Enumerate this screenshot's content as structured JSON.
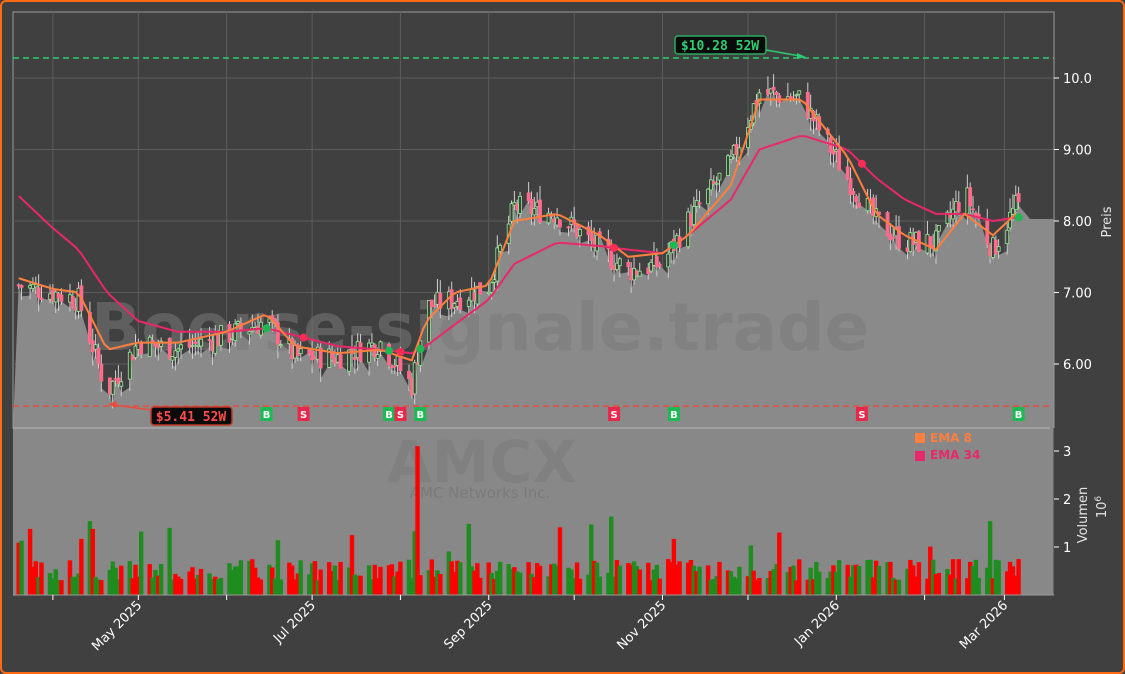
{
  "chart_data": {
    "type": "candlestick",
    "ticker": "AMCX",
    "company": "AMC Networks Inc.",
    "watermark": "Boerse-signale.trade",
    "price_panel": {
      "ylabel": "Preis",
      "ylim": [
        5.2,
        10.95
      ],
      "yticks": [
        6.0,
        7.0,
        8.0,
        9.0,
        10.0
      ],
      "ytick_labels": [
        "6.00",
        "7.00",
        "8.00",
        "9.00",
        "10.0"
      ],
      "high_52w": {
        "value": 10.28,
        "label": "$10.28 52W",
        "color": "#2ecc71"
      },
      "low_52w": {
        "value": 5.41,
        "label": "$5.41 52W",
        "color": "#e74c3c"
      },
      "close_series_approx": {
        "dates": [
          "2025-03-20",
          "2025-04-01",
          "2025-04-10",
          "2025-04-20",
          "2025-05-01",
          "2025-05-15",
          "2025-06-01",
          "2025-06-15",
          "2025-06-25",
          "2025-07-10",
          "2025-07-25",
          "2025-08-05",
          "2025-08-10",
          "2025-08-20",
          "2025-09-01",
          "2025-09-10",
          "2025-09-25",
          "2025-10-10",
          "2025-10-20",
          "2025-11-01",
          "2025-11-10",
          "2025-11-25",
          "2025-12-05",
          "2025-12-20",
          "2026-01-05",
          "2026-01-15",
          "2026-01-25",
          "2026-02-05",
          "2026-02-15",
          "2026-02-25",
          "2026-03-05"
        ],
        "close": [
          7.1,
          7.0,
          6.9,
          5.6,
          6.3,
          6.2,
          6.4,
          6.6,
          6.1,
          6.1,
          6.3,
          5.7,
          6.8,
          6.9,
          7.1,
          8.2,
          8.1,
          7.6,
          7.3,
          7.4,
          8.0,
          8.8,
          9.8,
          9.7,
          8.6,
          8.0,
          7.7,
          7.7,
          8.4,
          7.6,
          8.2
        ]
      },
      "ema_8_approx": [
        7.2,
        7.05,
        7.0,
        6.2,
        6.3,
        6.3,
        6.45,
        6.7,
        6.25,
        6.15,
        6.2,
        6.05,
        6.6,
        7.0,
        7.1,
        8.0,
        8.1,
        7.8,
        7.5,
        7.55,
        7.8,
        8.5,
        9.7,
        9.7,
        8.9,
        8.1,
        7.8,
        7.6,
        8.1,
        7.8,
        8.1
      ],
      "ema_34_approx": [
        8.35,
        7.9,
        7.6,
        7.0,
        6.6,
        6.45,
        6.45,
        6.5,
        6.4,
        6.25,
        6.2,
        6.15,
        6.25,
        6.55,
        6.9,
        7.4,
        7.7,
        7.65,
        7.6,
        7.55,
        7.8,
        8.3,
        9.0,
        9.2,
        9.0,
        8.6,
        8.3,
        8.1,
        8.1,
        8.0,
        8.05
      ]
    },
    "volume_panel": {
      "ylabel": "Volumen",
      "multiplier": "10^6",
      "yticks": [
        1,
        2,
        3
      ],
      "ylim": [
        0,
        3.3
      ],
      "notable_spikes": [
        {
          "date": "2025-08-07",
          "value": 3.1
        },
        {
          "date": "2025-12-12",
          "value": 1.3
        },
        {
          "date": "2026-02-15",
          "value": 1.4
        }
      ]
    },
    "legend": [
      {
        "label": "EMA 8",
        "color": "#ff7f3f"
      },
      {
        "label": "EMA 34",
        "color": "#e8286a"
      }
    ],
    "signals": [
      {
        "type": "B",
        "date": "2025-06-15",
        "color": "#1db954"
      },
      {
        "type": "S",
        "date": "2025-06-28",
        "color": "#e8284a"
      },
      {
        "type": "B",
        "date": "2025-07-28",
        "color": "#1db954"
      },
      {
        "type": "S",
        "date": "2025-08-01",
        "color": "#e8284a"
      },
      {
        "type": "B",
        "date": "2025-08-08",
        "color": "#1db954"
      },
      {
        "type": "S",
        "date": "2025-10-15",
        "color": "#e8284a"
      },
      {
        "type": "B",
        "date": "2025-11-05",
        "color": "#1db954"
      },
      {
        "type": "S",
        "date": "2026-01-10",
        "color": "#e8284a"
      },
      {
        "type": "B",
        "date": "2026-03-06",
        "color": "#1db954"
      }
    ],
    "x_tick_labels": [
      "May 2025",
      "Jul 2025",
      "Sep 2025",
      "Nov 2025",
      "Jan 2026",
      "Mar 2026"
    ],
    "colors": {
      "background": "#404040",
      "panel": "#404040",
      "area_fill": "#888888",
      "up_candle": "#90ee90",
      "down_candle": "#ff6b8a",
      "volume_up": "#1e8c1e",
      "volume_down": "#ff0000",
      "frame_border": "#ff6a13"
    }
  }
}
